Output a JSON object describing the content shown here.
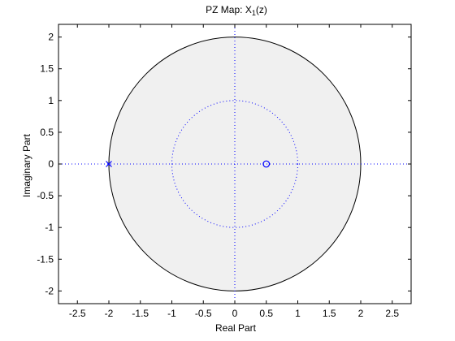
{
  "chart_data": {
    "type": "scatter",
    "title_main": "PZ Map: X",
    "title_sub": "1",
    "title_tail": "(z)",
    "xlabel": "Real Part",
    "ylabel": "Imaginary Part",
    "xlim": [
      -2.8,
      2.8
    ],
    "ylim": [
      -2.2,
      2.2
    ],
    "xticks": [
      -2.5,
      -2,
      -1.5,
      -1,
      -0.5,
      0,
      0.5,
      1,
      1.5,
      2,
      2.5
    ],
    "xtick_labels": [
      "-2.5",
      "-2",
      "-1.5",
      "-1",
      "-0.5",
      "0",
      "0.5",
      "1",
      "1.5",
      "2",
      "2.5"
    ],
    "yticks": [
      2,
      1.5,
      1,
      0.5,
      0,
      -0.5,
      -1,
      -1.5,
      -2
    ],
    "ytick_labels": [
      "2",
      "1.5",
      "1",
      "0.5",
      "0",
      "-0.5",
      "-1",
      "-1.5",
      "-2"
    ],
    "roc": {
      "shaded_radius": 2,
      "fill_color": "#f0f0f0",
      "edge_color": "#000000"
    },
    "unit_circle": {
      "radius": 1,
      "style": "dotted",
      "color": "#0000ff"
    },
    "axes_lines": {
      "style": "dotted",
      "color": "#0000ff"
    },
    "poles": [
      {
        "re": -2,
        "im": 0,
        "marker": "x"
      }
    ],
    "zeros": [
      {
        "re": 0.5,
        "im": 0,
        "marker": "o"
      }
    ],
    "marker_color": "#0000ff",
    "grid": false
  }
}
